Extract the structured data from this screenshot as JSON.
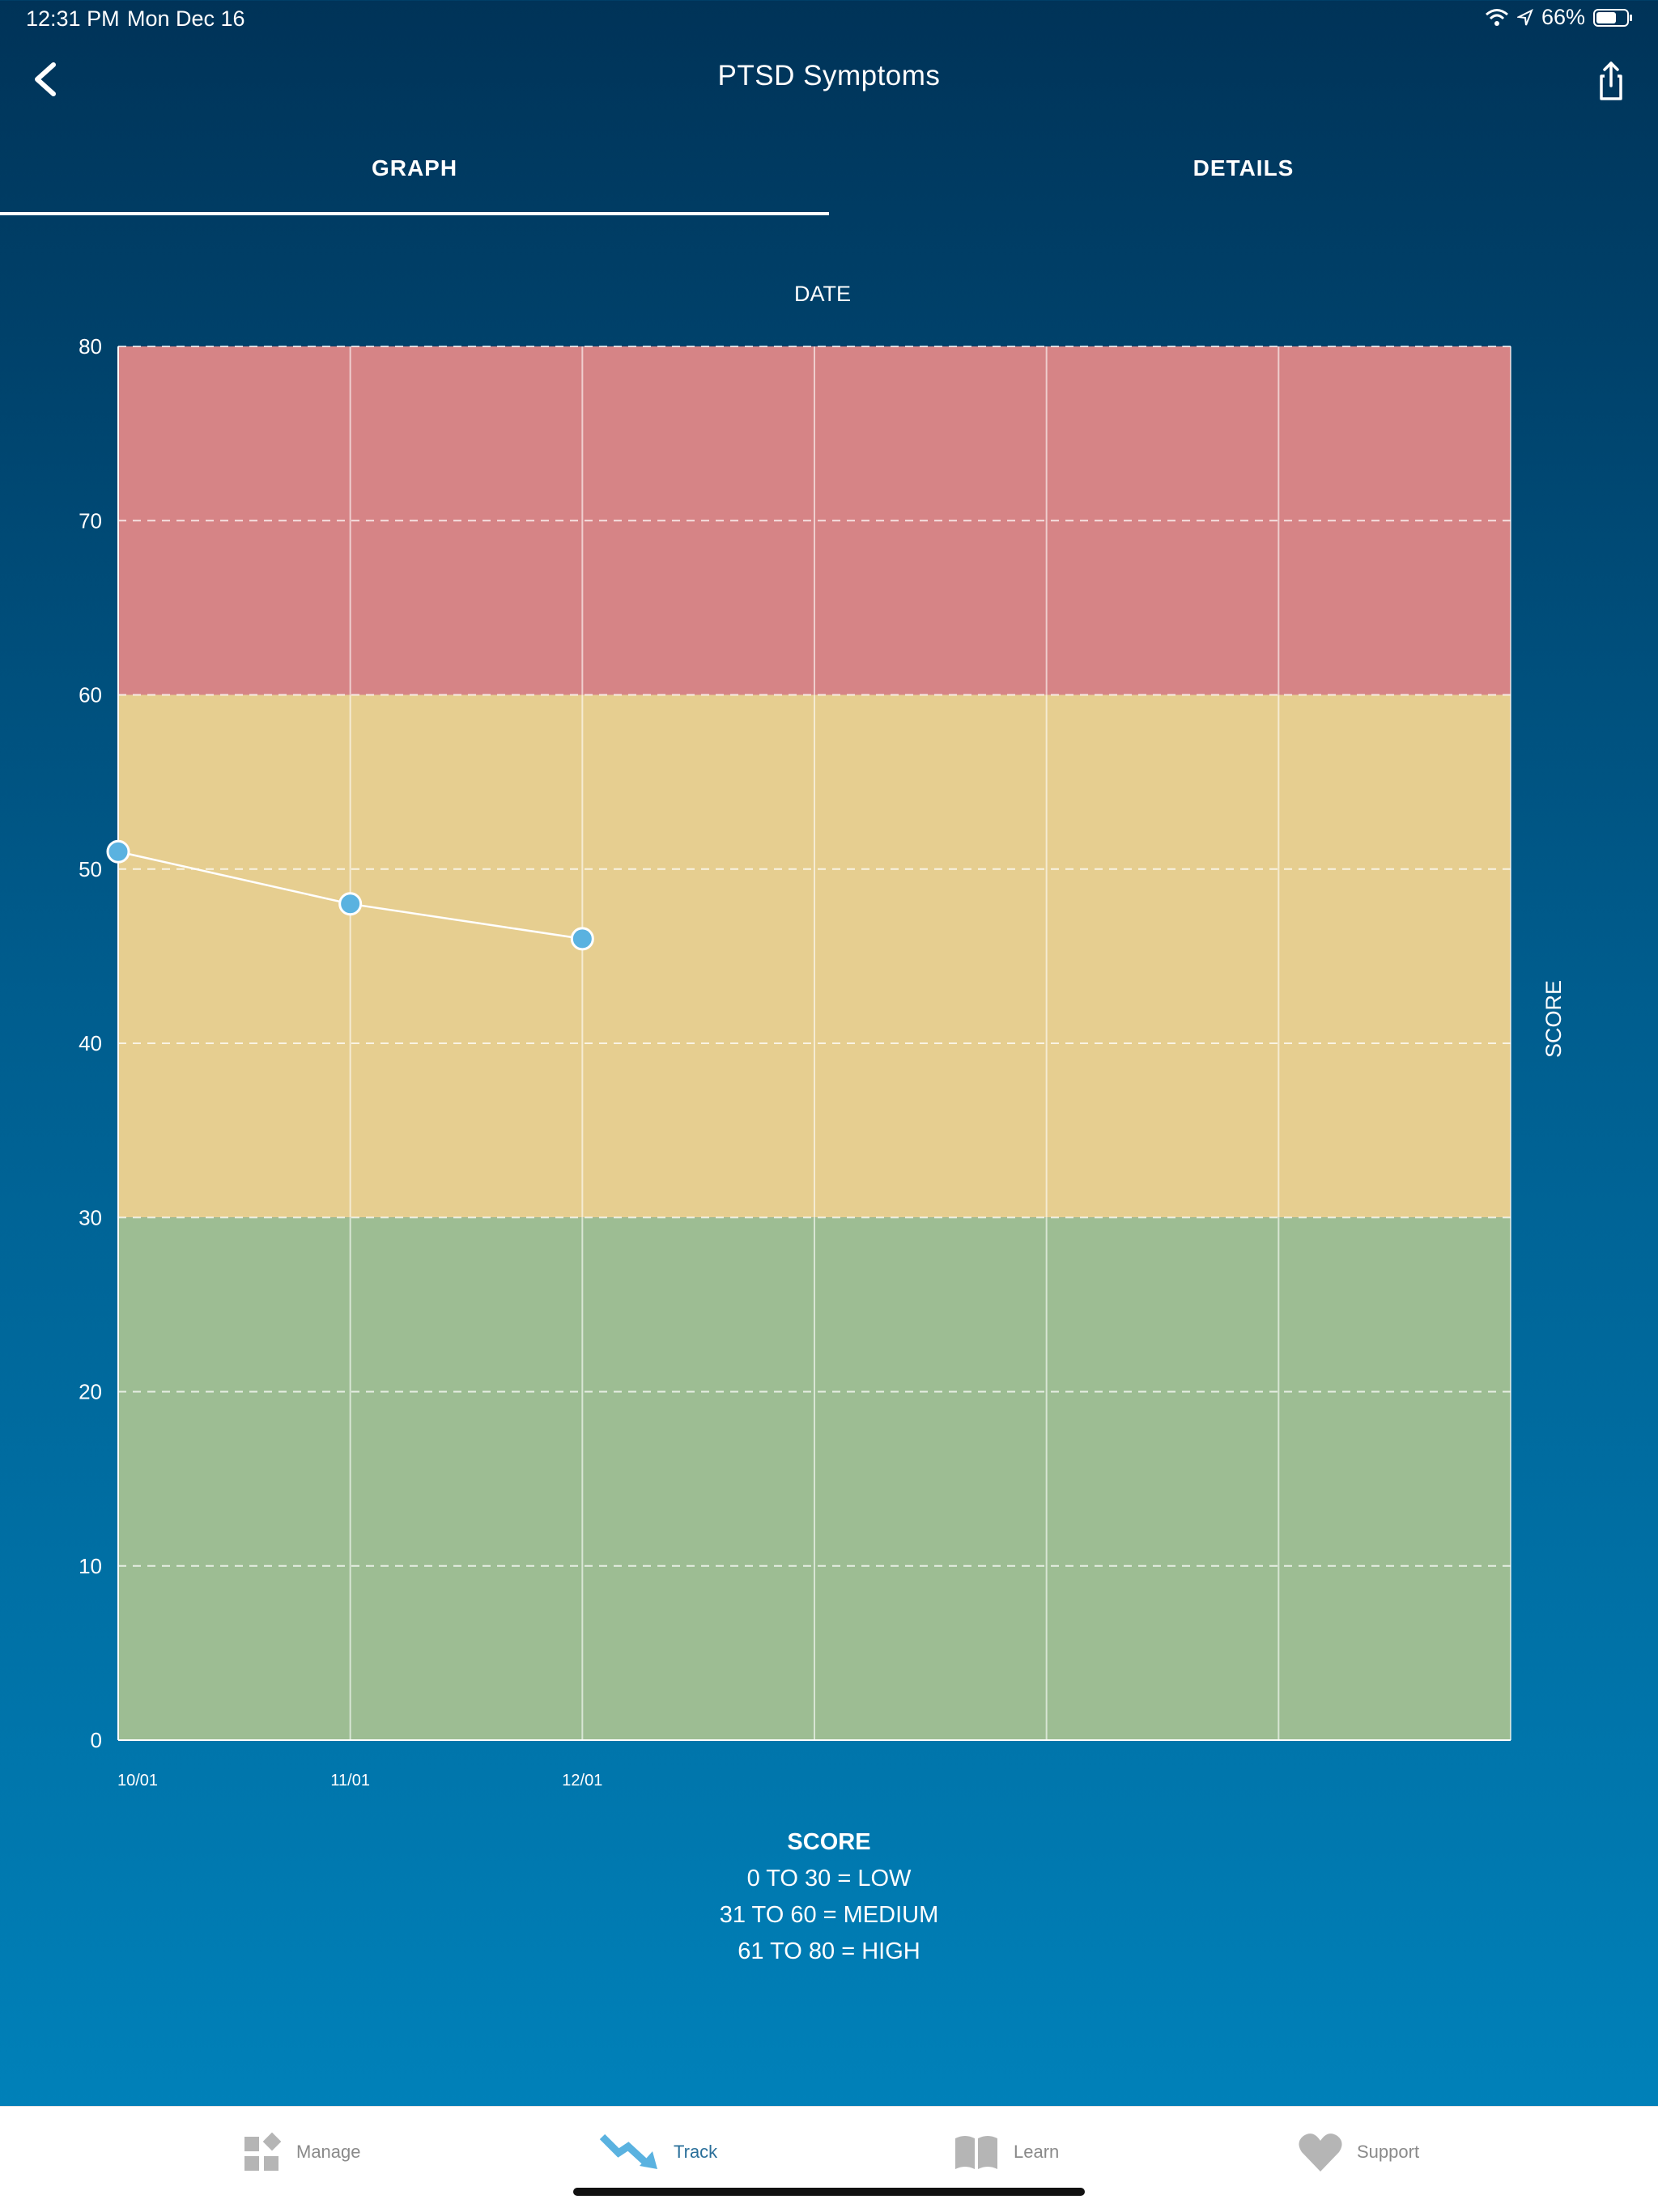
{
  "status_bar": {
    "time": "12:31 PM",
    "date": "Mon Dec 16",
    "battery": "66%",
    "icons": [
      "wifi-icon",
      "location-arrow-icon",
      "battery-icon"
    ]
  },
  "nav": {
    "title": "PTSD Symptoms",
    "back_icon": "chevron-left-icon",
    "share_icon": "share-icon"
  },
  "tabs": [
    {
      "label": "GRAPH",
      "active": true
    },
    {
      "label": "DETAILS",
      "active": false
    }
  ],
  "chart_data": {
    "type": "line",
    "title": "DATE",
    "xlabel": "",
    "ylabel": "SCORE",
    "x": [
      "10/01",
      "11/01",
      "12/01"
    ],
    "y": [
      51,
      48,
      46
    ],
    "ylim": [
      0,
      80
    ],
    "yticks": [
      0,
      10,
      20,
      30,
      40,
      50,
      60,
      70,
      80
    ],
    "x_columns": 6,
    "grid": true,
    "bands": [
      {
        "from": 0,
        "to": 30,
        "color": "#9dbd93"
      },
      {
        "from": 30,
        "to": 60,
        "color": "#e6ce90"
      },
      {
        "from": 60,
        "to": 80,
        "color": "#d68486"
      }
    ],
    "point_color": "#5ab2e0",
    "line_color": "#ffffff"
  },
  "legend": {
    "title": "SCORE",
    "lines": [
      "0 TO 30 = LOW",
      "31 TO 60 = MEDIUM",
      "61 TO 80 = HIGH"
    ]
  },
  "tabbar": [
    {
      "label": "Manage",
      "icon": "manage-icon",
      "active": false
    },
    {
      "label": "Track",
      "icon": "track-icon",
      "active": true
    },
    {
      "label": "Learn",
      "icon": "book-icon",
      "active": false
    },
    {
      "label": "Support",
      "icon": "heart-icon",
      "active": false
    }
  ]
}
